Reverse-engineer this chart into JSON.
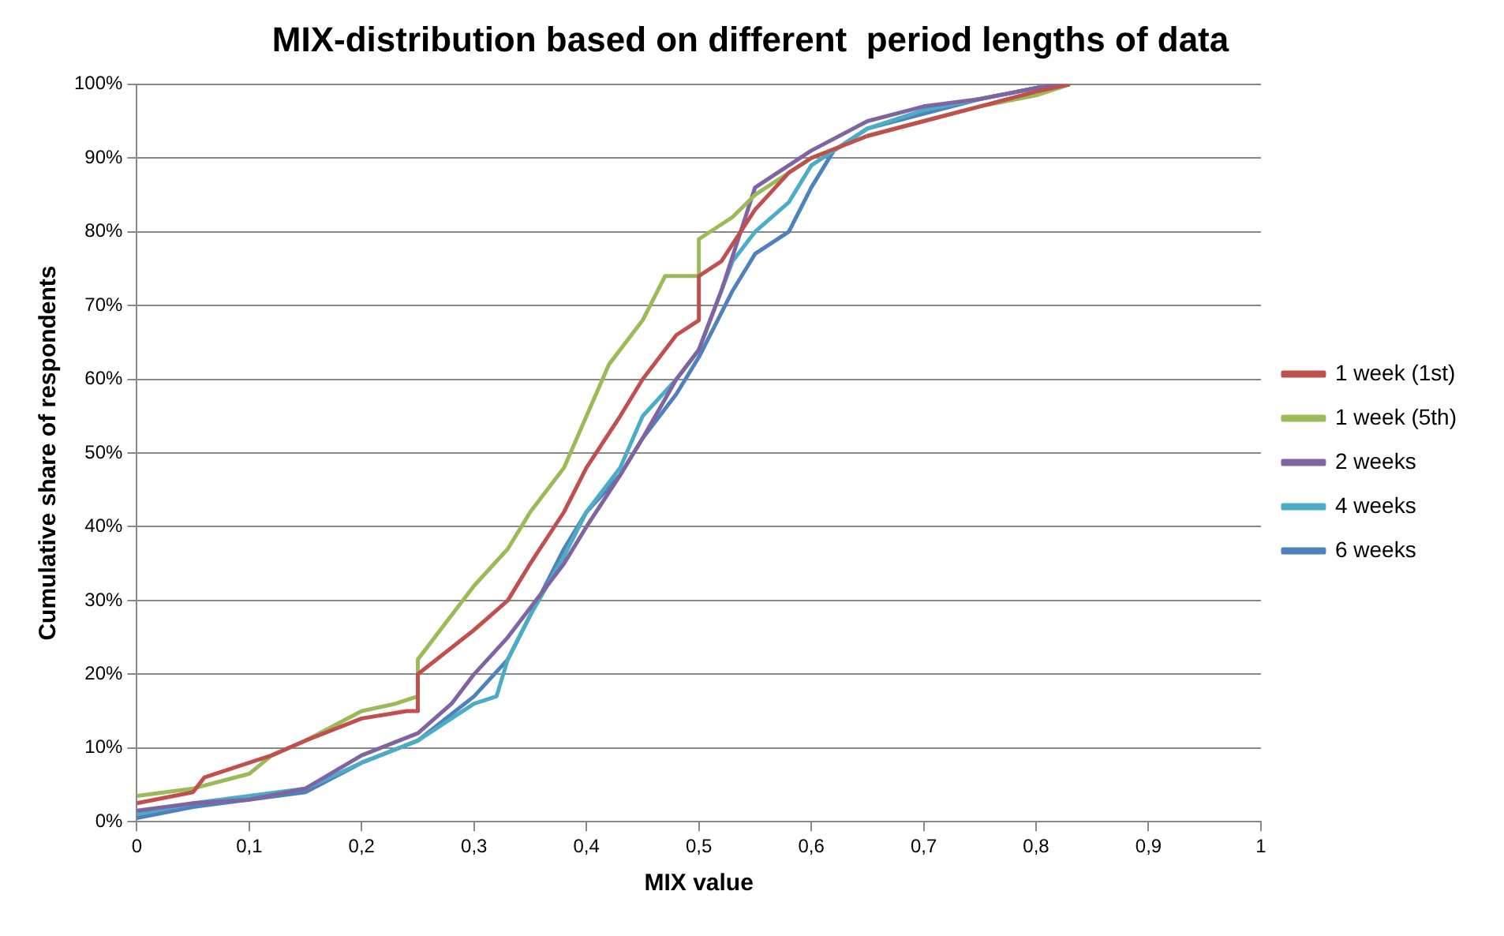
{
  "chart_data": {
    "type": "line",
    "title": "MIX-distribution based on different  period lengths of data",
    "xlabel": "MIX value",
    "ylabel": "Cumulative share of respondents",
    "xlim": [
      0,
      1
    ],
    "xticks": [
      0,
      {
        "value": 0.1,
        "label": "0,1"
      },
      {
        "value": 0.2,
        "label": "0,2"
      },
      {
        "value": 0.3,
        "label": "0,3"
      },
      {
        "value": 0.4,
        "label": "0,4"
      },
      {
        "value": 0.5,
        "label": "0,5"
      },
      {
        "value": 0.6,
        "label": "0,6"
      },
      {
        "value": 0.7,
        "label": "0,7"
      },
      {
        "value": 0.8,
        "label": "0,8"
      },
      {
        "value": 0.9,
        "label": "0,9"
      },
      1
    ],
    "ylim": [
      0,
      100
    ],
    "yticks": [
      {
        "value": 0,
        "label": "0%"
      },
      {
        "value": 10,
        "label": "10%"
      },
      {
        "value": 20,
        "label": "20%"
      },
      {
        "value": 30,
        "label": "30%"
      },
      {
        "value": 40,
        "label": "40%"
      },
      {
        "value": 50,
        "label": "50%"
      },
      {
        "value": 60,
        "label": "60%"
      },
      {
        "value": 70,
        "label": "70%"
      },
      {
        "value": 80,
        "label": "80%"
      },
      {
        "value": 90,
        "label": "90%"
      },
      {
        "value": 100,
        "label": "100%"
      }
    ],
    "grid": "y",
    "legend": "right",
    "marker": "none",
    "line_style": "solid",
    "series": [
      {
        "name": "1 week (1st)",
        "color": "#c0504d",
        "x": [
          0,
          0.05,
          0.06,
          0.1,
          0.12,
          0.15,
          0.2,
          0.24,
          0.25,
          0.25,
          0.3,
          0.33,
          0.35,
          0.38,
          0.4,
          0.43,
          0.45,
          0.48,
          0.5,
          0.5,
          0.52,
          0.55,
          0.58,
          0.6,
          0.65,
          0.7,
          0.75,
          0.8,
          0.83
        ],
        "values": [
          2.5,
          4,
          6,
          8,
          9,
          11,
          14,
          15,
          15,
          20,
          26,
          30,
          35,
          42,
          48,
          55,
          60,
          66,
          68,
          74,
          76,
          83,
          88,
          90,
          93,
          95,
          97,
          99,
          100
        ]
      },
      {
        "name": "1 week (5th)",
        "color": "#9bbb59",
        "x": [
          0,
          0.05,
          0.1,
          0.12,
          0.15,
          0.2,
          0.23,
          0.25,
          0.25,
          0.28,
          0.3,
          0.33,
          0.35,
          0.38,
          0.4,
          0.42,
          0.45,
          0.47,
          0.5,
          0.5,
          0.53,
          0.55,
          0.6,
          0.65,
          0.7,
          0.75,
          0.8,
          0.83
        ],
        "values": [
          3.5,
          4.5,
          6.5,
          9,
          11,
          15,
          16,
          17,
          22,
          28,
          32,
          37,
          42,
          48,
          55,
          62,
          68,
          74,
          74,
          79,
          82,
          85,
          90,
          93,
          95,
          97,
          98.5,
          100
        ]
      },
      {
        "name": "2 weeks",
        "color": "#8064a2",
        "x": [
          0,
          0.05,
          0.1,
          0.15,
          0.2,
          0.25,
          0.28,
          0.3,
          0.33,
          0.35,
          0.38,
          0.4,
          0.43,
          0.45,
          0.48,
          0.5,
          0.52,
          0.55,
          0.57,
          0.6,
          0.65,
          0.7,
          0.75,
          0.8,
          0.82
        ],
        "values": [
          1.5,
          2.5,
          3,
          4.5,
          9,
          12,
          16,
          20,
          25,
          29,
          35,
          40,
          47,
          52,
          60,
          64,
          72,
          86,
          88,
          91,
          95,
          97,
          98,
          99.5,
          100
        ]
      },
      {
        "name": "4 weeks",
        "color": "#4bacc6",
        "x": [
          0,
          0.05,
          0.1,
          0.15,
          0.2,
          0.25,
          0.3,
          0.32,
          0.33,
          0.35,
          0.38,
          0.4,
          0.43,
          0.45,
          0.48,
          0.5,
          0.53,
          0.55,
          0.58,
          0.6,
          0.65,
          0.7,
          0.75,
          0.8,
          0.82
        ],
        "values": [
          1,
          2.5,
          3.5,
          4.5,
          8,
          11,
          16,
          17,
          22,
          28,
          36,
          42,
          48,
          55,
          60,
          64,
          76,
          80,
          84,
          89,
          94,
          96.5,
          98,
          99.5,
          100
        ]
      },
      {
        "name": "6 weeks",
        "color": "#4f81bd",
        "x": [
          0,
          0.05,
          0.1,
          0.15,
          0.2,
          0.25,
          0.3,
          0.33,
          0.35,
          0.38,
          0.4,
          0.43,
          0.45,
          0.48,
          0.5,
          0.53,
          0.55,
          0.58,
          0.6,
          0.62,
          0.65,
          0.7,
          0.75,
          0.8,
          0.82
        ],
        "values": [
          0.5,
          2,
          3,
          4,
          8,
          11,
          17,
          22,
          28,
          37,
          42,
          47,
          52,
          58,
          63,
          72,
          77,
          80,
          86,
          91,
          94,
          96,
          98,
          99.5,
          100
        ]
      }
    ]
  }
}
